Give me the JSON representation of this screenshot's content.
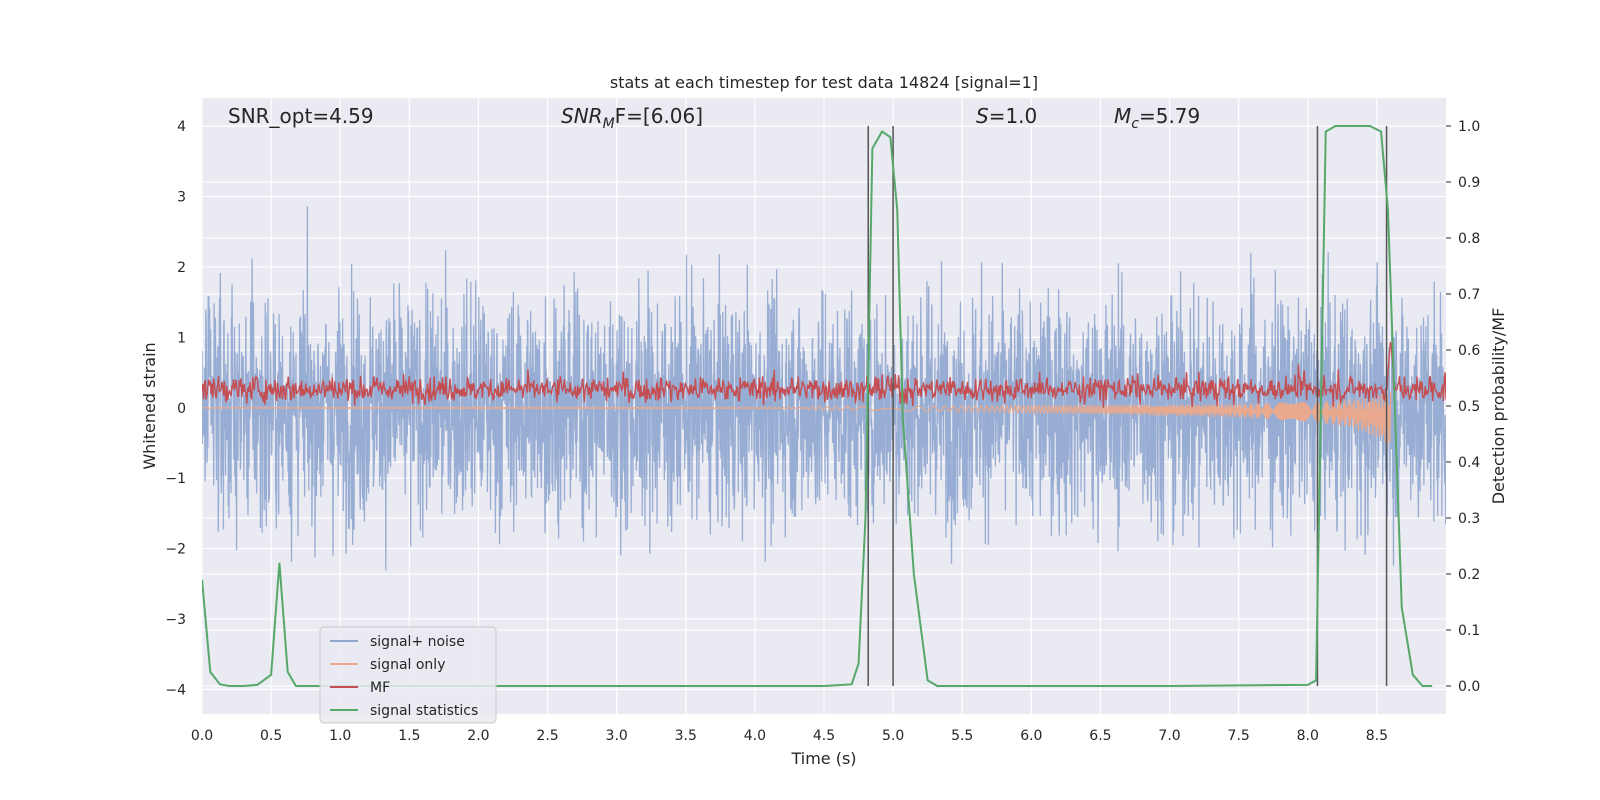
{
  "chart_data": {
    "type": "line",
    "title": "stats at each timestep for test data 14824 [signal=1]",
    "xlabel": "Time (s)",
    "ylabel": "Whitened strain",
    "ylabel_right": "Detection probability/MF",
    "xlim": [
      0,
      9.0
    ],
    "ylim": [
      -4.35,
      4.4
    ],
    "ylim_right": [
      -0.05,
      1.05
    ],
    "x_ticks": [
      "0.0",
      "0.5",
      "1.0",
      "1.5",
      "2.0",
      "2.5",
      "3.0",
      "3.5",
      "4.0",
      "4.5",
      "5.0",
      "5.5",
      "6.0",
      "6.5",
      "7.0",
      "7.5",
      "8.0",
      "8.5"
    ],
    "y_ticks": [
      "4",
      "3",
      "2",
      "1",
      "0",
      "−1",
      "−2",
      "−3",
      "−4"
    ],
    "y_ticks_right": [
      "1.0",
      "0.9",
      "0.8",
      "0.7",
      "0.6",
      "0.5",
      "0.4",
      "0.3",
      "0.2",
      "0.1",
      "0.0"
    ],
    "grid": true,
    "legend_position": "lower-left",
    "annotations": {
      "snr_opt": "SNR_opt=4.59",
      "snr_mf_prefix": "SNR",
      "snr_mf_sub": "M",
      "snr_mf_suffix": "F=[6.06]",
      "s_label": "S",
      "s_value": "=1.0",
      "mc_label": "M",
      "mc_sub": "c",
      "mc_value": "=5.79"
    },
    "vertical_lines_x": [
      4.82,
      5.0,
      8.07,
      8.57
    ],
    "series": [
      {
        "name": "signal+ noise",
        "color": "#8fa6cf",
        "description_stat": "whitened noise, std≈1, range ~[-3.7, 4.0]"
      },
      {
        "name": "signal only",
        "color": "#e8a98e",
        "x": [
          0,
          4.0,
          5.0,
          6.0,
          7.0,
          7.5,
          8.0,
          8.3,
          8.5,
          8.6
        ],
        "envelope": [
          0.005,
          0.01,
          0.03,
          0.05,
          0.08,
          0.1,
          0.14,
          0.2,
          0.3,
          0.4
        ]
      },
      {
        "name": "MF",
        "color": "#c44e52",
        "mean_right_axis": 0.53,
        "peak": {
          "x": 8.6,
          "y": 0.62
        }
      },
      {
        "name": "signal statistics",
        "color": "#55a868",
        "x": [
          0.0,
          0.06,
          0.13,
          0.2,
          0.3,
          0.4,
          0.5,
          0.56,
          0.62,
          0.68,
          0.8,
          1.0,
          2.0,
          3.0,
          4.0,
          4.5,
          4.7,
          4.75,
          4.8,
          4.85,
          4.92,
          4.98,
          5.03,
          5.07,
          5.15,
          5.25,
          5.32,
          6.0,
          7.0,
          8.0,
          8.06,
          8.13,
          8.2,
          8.3,
          8.45,
          8.53,
          8.58,
          8.68,
          8.76,
          8.83,
          8.9
        ],
        "values": [
          0.19,
          0.025,
          0.003,
          0.0,
          0.0,
          0.002,
          0.02,
          0.22,
          0.025,
          0.0,
          0.0,
          0.0,
          0.0,
          0.0,
          0.0,
          0.0,
          0.003,
          0.04,
          0.3,
          0.96,
          0.99,
          0.98,
          0.85,
          0.48,
          0.2,
          0.01,
          0.0,
          0.0,
          0.0,
          0.002,
          0.01,
          0.99,
          1.0,
          1.0,
          1.0,
          0.99,
          0.85,
          0.14,
          0.02,
          0.0,
          0.0
        ]
      }
    ]
  }
}
